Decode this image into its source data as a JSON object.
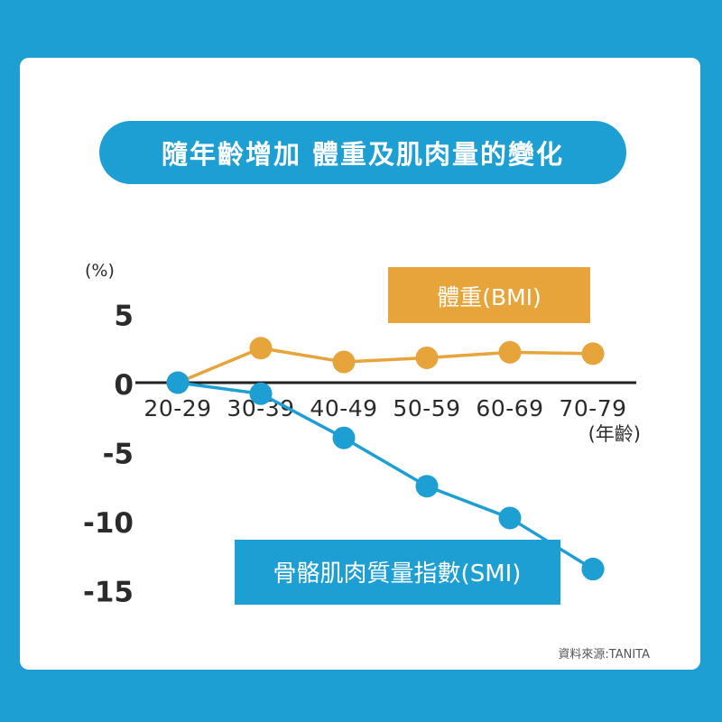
{
  "title": "隨年齡增加 體重及肌肉量的變化",
  "source": "資料來源:TANITA",
  "colors": {
    "background": "#1e9fd4",
    "card": "#ffffff",
    "bmi": "#e6a43b",
    "smi": "#1e9fd4",
    "axis": "#222222",
    "text": "#2b2b2b"
  },
  "chart_data": {
    "type": "line",
    "ylabel": "(%)",
    "xlabel": "(年齡)",
    "categories": [
      "20-29",
      "30-39",
      "40-49",
      "50-59",
      "60-69",
      "70-79"
    ],
    "yticks": [
      5,
      0,
      -5,
      -10,
      -15
    ],
    "ylim": [
      -15,
      5
    ],
    "series": [
      {
        "name": "體重(BMI)",
        "values": [
          0,
          2.5,
          1.5,
          1.8,
          2.2,
          2.1
        ]
      },
      {
        "name": "骨骼肌肉質量指數(SMI)",
        "values": [
          0,
          -0.8,
          -4,
          -7.5,
          -9.8,
          -13.5
        ]
      }
    ]
  }
}
